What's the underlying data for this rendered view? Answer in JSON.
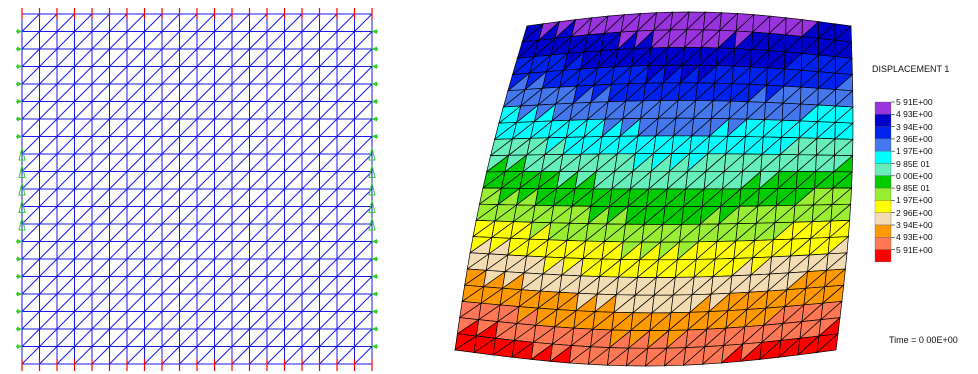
{
  "legend": {
    "title": "DISPLACEMENT  1",
    "labels": [
      "5 91E+00",
      "4 93E+00",
      "3 94E+00",
      "2 96E+00",
      "1 97E+00",
      "9 85E 01",
      "0 00E+00",
      "9 85E 01",
      "1 97E+00",
      "2 96E+00",
      "3 94E+00",
      "4 93E+00",
      "5 91E+00"
    ],
    "colors": [
      "#9933dd",
      "#0000cc",
      "#0022ee",
      "#4477ee",
      "#00ffff",
      "#66eebb",
      "#00cc00",
      "#99ee33",
      "#ffff00",
      "#f3dcb4",
      "#ff9900",
      "#ff7755",
      "#ff0000"
    ]
  },
  "time_label": "Time = 0 00E+00",
  "colors": {
    "mesh": "#1a1aee",
    "boundary": "#ff0000",
    "support": "#33cc33",
    "deformed_edge": "#000000"
  }
}
